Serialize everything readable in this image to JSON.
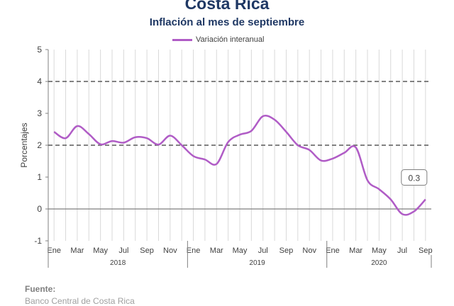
{
  "chart_data": {
    "type": "line",
    "title": "Costa Rica",
    "subtitle": "Inflación al mes de septiembre",
    "ylabel": "Porcentajes",
    "xlabel": "",
    "ylim": [
      -1,
      5
    ],
    "yticks": [
      "-1",
      "0",
      "1",
      "2",
      "3",
      "4",
      "5"
    ],
    "grid": "vertical lines at each month; dashed horizontal lines at 2 and 4",
    "legend_position": "top-center",
    "x": [
      "Ene 2018",
      "Feb 2018",
      "Mar 2018",
      "Abr 2018",
      "May 2018",
      "Jun 2018",
      "Jul 2018",
      "Ago 2018",
      "Sep 2018",
      "Oct 2018",
      "Nov 2018",
      "Dic 2018",
      "Ene 2019",
      "Feb 2019",
      "Mar 2019",
      "Abr 2019",
      "May 2019",
      "Jun 2019",
      "Jul 2019",
      "Ago 2019",
      "Sep 2019",
      "Oct 2019",
      "Nov 2019",
      "Dic 2019",
      "Ene 2020",
      "Feb 2020",
      "Mar 2020",
      "Abr 2020",
      "May 2020",
      "Jun 2020",
      "Jul 2020",
      "Ago 2020",
      "Sep 2020"
    ],
    "month_tick_labels": [
      "Ene",
      "",
      "Mar",
      "",
      "May",
      "",
      "Jul",
      "",
      "Sep",
      "",
      "Nov",
      "",
      "Ene",
      "",
      "Mar",
      "",
      "May",
      "",
      "Jul",
      "",
      "Sep",
      "",
      "Nov",
      "",
      "Ene",
      "",
      "Mar",
      "",
      "May",
      "",
      "Jul",
      "",
      "Sep"
    ],
    "year_labels": [
      "2018",
      "2019",
      "2020"
    ],
    "series": [
      {
        "name": "Variación interanual",
        "color": "#b05cc6",
        "values": [
          2.42,
          2.22,
          2.6,
          2.35,
          2.03,
          2.13,
          2.08,
          2.25,
          2.22,
          2.02,
          2.3,
          2.0,
          1.66,
          1.55,
          1.41,
          2.1,
          2.33,
          2.45,
          2.91,
          2.8,
          2.42,
          2.0,
          1.85,
          1.52,
          1.58,
          1.76,
          1.93,
          0.9,
          0.62,
          0.3,
          -0.16,
          -0.08,
          0.3
        ]
      }
    ],
    "annotations": [
      {
        "text": "0.3",
        "at": "Sep 2020"
      }
    ]
  },
  "footer": {
    "label": "Fuente:",
    "source": "Banco Central de Costa Rica"
  }
}
